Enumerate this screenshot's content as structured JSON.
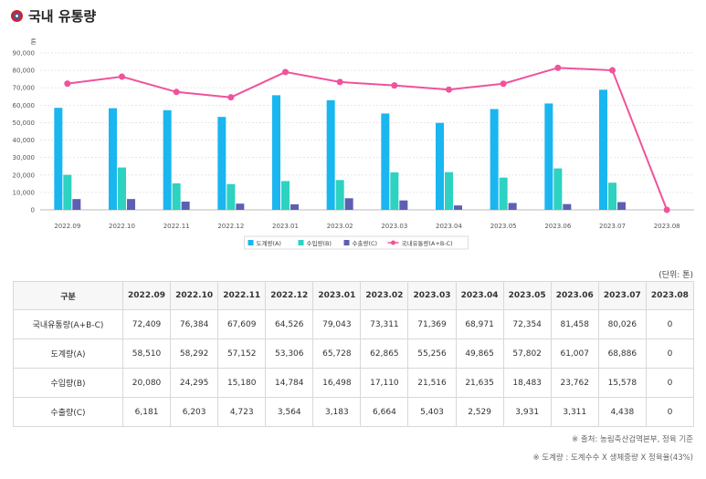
{
  "page": {
    "title": "국내 유통량"
  },
  "chart_data": {
    "type": "bar",
    "ylabel": "톤",
    "ylim": [
      0,
      90000
    ],
    "yticks": [
      "0",
      "10,000",
      "20,000",
      "30,000",
      "40,000",
      "50,000",
      "60,000",
      "70,000",
      "80,000",
      "90,000"
    ],
    "categories": [
      "2022.09",
      "2022.10",
      "2022.11",
      "2022.12",
      "2023.01",
      "2023.02",
      "2023.03",
      "2023.04",
      "2023.05",
      "2023.06",
      "2023.07",
      "2023.08"
    ],
    "series": [
      {
        "name": "도계량(A)",
        "type": "bar",
        "color": "#1ab6f0",
        "values": [
          58510,
          58292,
          57152,
          53306,
          65728,
          62865,
          55256,
          49865,
          57802,
          61007,
          68886,
          0
        ]
      },
      {
        "name": "수입량(B)",
        "type": "bar",
        "color": "#2dd2c1",
        "values": [
          20080,
          24295,
          15180,
          14784,
          16498,
          17110,
          21516,
          21635,
          18483,
          23762,
          15578,
          0
        ]
      },
      {
        "name": "수출량(C)",
        "type": "bar",
        "color": "#5d5fb3",
        "values": [
          6181,
          6203,
          4723,
          3564,
          3183,
          6664,
          5403,
          2529,
          3931,
          3311,
          4438,
          0
        ]
      },
      {
        "name": "국내유통량(A+B-C)",
        "type": "line",
        "color": "#f0529b",
        "values": [
          72409,
          76384,
          67609,
          64526,
          79043,
          73311,
          71369,
          68971,
          72354,
          81458,
          80026,
          0
        ]
      }
    ],
    "grid": true,
    "legend": "bottom-center"
  },
  "table": {
    "unit": "(단위: 톤)",
    "corner": "구분",
    "columns": [
      "2022.09",
      "2022.10",
      "2022.11",
      "2022.12",
      "2023.01",
      "2023.02",
      "2023.03",
      "2023.04",
      "2023.05",
      "2023.06",
      "2023.07",
      "2023.08"
    ],
    "rows": [
      {
        "label": "국내유통량(A+B-C)",
        "values": [
          "72,409",
          "76,384",
          "67,609",
          "64,526",
          "79,043",
          "73,311",
          "71,369",
          "68,971",
          "72,354",
          "81,458",
          "80,026",
          "0"
        ]
      },
      {
        "label": "도계량(A)",
        "values": [
          "58,510",
          "58,292",
          "57,152",
          "53,306",
          "65,728",
          "62,865",
          "55,256",
          "49,865",
          "57,802",
          "61,007",
          "68,886",
          "0"
        ]
      },
      {
        "label": "수입량(B)",
        "values": [
          "20,080",
          "24,295",
          "15,180",
          "14,784",
          "16,498",
          "17,110",
          "21,516",
          "21,635",
          "18,483",
          "23,762",
          "15,578",
          "0"
        ]
      },
      {
        "label": "수출량(C)",
        "values": [
          "6,181",
          "6,203",
          "4,723",
          "3,564",
          "3,183",
          "6,664",
          "5,403",
          "2,529",
          "3,931",
          "3,311",
          "4,438",
          "0"
        ]
      }
    ]
  },
  "notes": {
    "source": "※ 출처: 농림축산검역본부, 정육 기준",
    "formula": "※ 도계량 : 도계수수 X 생체중량 X 정육율(43%)"
  }
}
